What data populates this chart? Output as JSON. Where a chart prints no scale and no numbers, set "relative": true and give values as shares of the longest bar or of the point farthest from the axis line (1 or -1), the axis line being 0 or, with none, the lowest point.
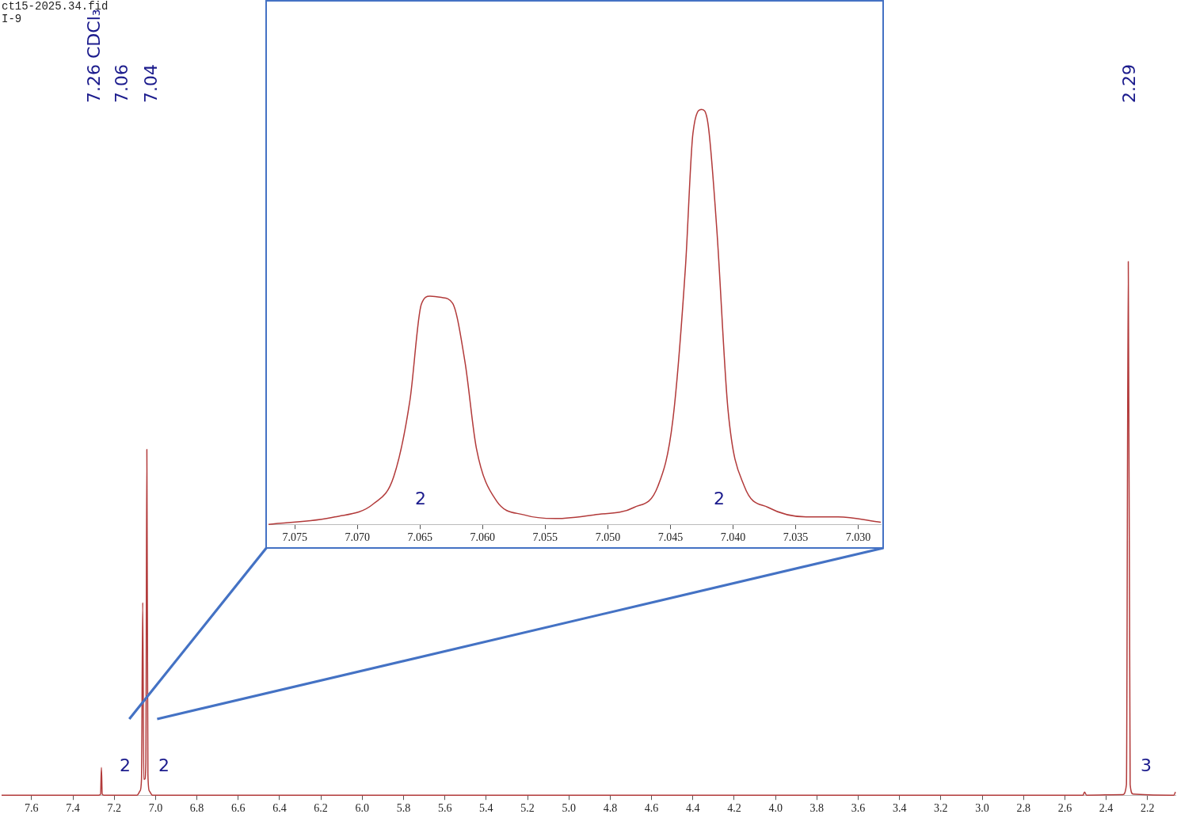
{
  "chart_data": [
    {
      "type": "line",
      "title": "ct15-2025.34.fid",
      "subtitle": "I-9",
      "color": "#b23a3a",
      "relative": true,
      "x": [
        7.745,
        7.275,
        7.266,
        7.262,
        7.258,
        7.25,
        7.09,
        7.075,
        7.068,
        7.062,
        7.057,
        7.052,
        7.047,
        7.042,
        7.037,
        7.03,
        7.015,
        2.53,
        2.512,
        2.505,
        2.495,
        2.32,
        2.302,
        2.293,
        2.284,
        2.27,
        2.09,
        2.072,
        2.065
      ],
      "values": [
        0,
        0,
        0.002,
        0.052,
        0.002,
        0,
        0,
        0.008,
        0.03,
        0.361,
        0.03,
        0.03,
        0.06,
        0.648,
        0.04,
        0.008,
        0,
        0,
        0,
        0.006,
        0,
        0.001,
        0.02,
        1,
        0.02,
        0.002,
        0,
        0,
        0.006
      ],
      "xlim": [
        7.745,
        2.065
      ],
      "xticks": [
        7.6,
        7.4,
        7.2,
        {
          "value": 7,
          "label": "7.0"
        },
        6.8,
        6.6,
        6.4,
        6.2,
        {
          "value": 6,
          "label": "6.0"
        },
        5.8,
        5.6,
        5.4,
        5.2,
        {
          "value": 5,
          "label": "5.0"
        },
        4.8,
        4.6,
        4.4,
        4.2,
        {
          "value": 4,
          "label": "4.0"
        },
        3.8,
        3.6,
        3.4,
        3.2,
        {
          "value": 3,
          "label": "3.0"
        },
        2.8,
        2.6,
        2.4,
        2.2
      ],
      "annotations": [
        "7.26 CDCl₃",
        "7.06",
        "7.04",
        "2.29",
        "2",
        "2",
        "3"
      ]
    },
    {
      "type": "line",
      "color": "#b23a3a",
      "relative": true,
      "x": [
        7.0771,
        7.0718,
        7.0687,
        7.0671,
        7.0658,
        7.0649,
        7.0642,
        7.0633,
        7.0624,
        7.0614,
        7.0605,
        7.0589,
        7.0567,
        7.0542,
        7.0511,
        7.0479,
        7.046,
        7.0448,
        7.0438,
        7.0432,
        7.0425,
        7.042,
        7.0413,
        7.0404,
        7.0391,
        7.0372,
        7.0341,
        7.0316,
        7.0282
      ],
      "values": [
        0,
        0.018,
        0.05,
        0.115,
        0.3,
        0.53,
        0.55,
        0.547,
        0.533,
        0.39,
        0.184,
        0.057,
        0.023,
        0.014,
        0.023,
        0.041,
        0.092,
        0.253,
        0.62,
        0.943,
        1,
        0.966,
        0.713,
        0.276,
        0.092,
        0.041,
        0.018,
        0.018,
        0.005
      ],
      "xlim": [
        7.0771,
        7.0282
      ],
      "xticks": [
        7.075,
        {
          "value": 7.07,
          "label": "7.070"
        },
        7.065,
        {
          "value": 7.06,
          "label": "7.060"
        },
        7.055,
        {
          "value": 7.05,
          "label": "7.050"
        },
        7.045,
        {
          "value": 7.04,
          "label": "7.040"
        },
        7.035,
        {
          "value": 7.03,
          "label": "7.030"
        }
      ],
      "annotations": [
        "2",
        "2"
      ]
    }
  ]
}
